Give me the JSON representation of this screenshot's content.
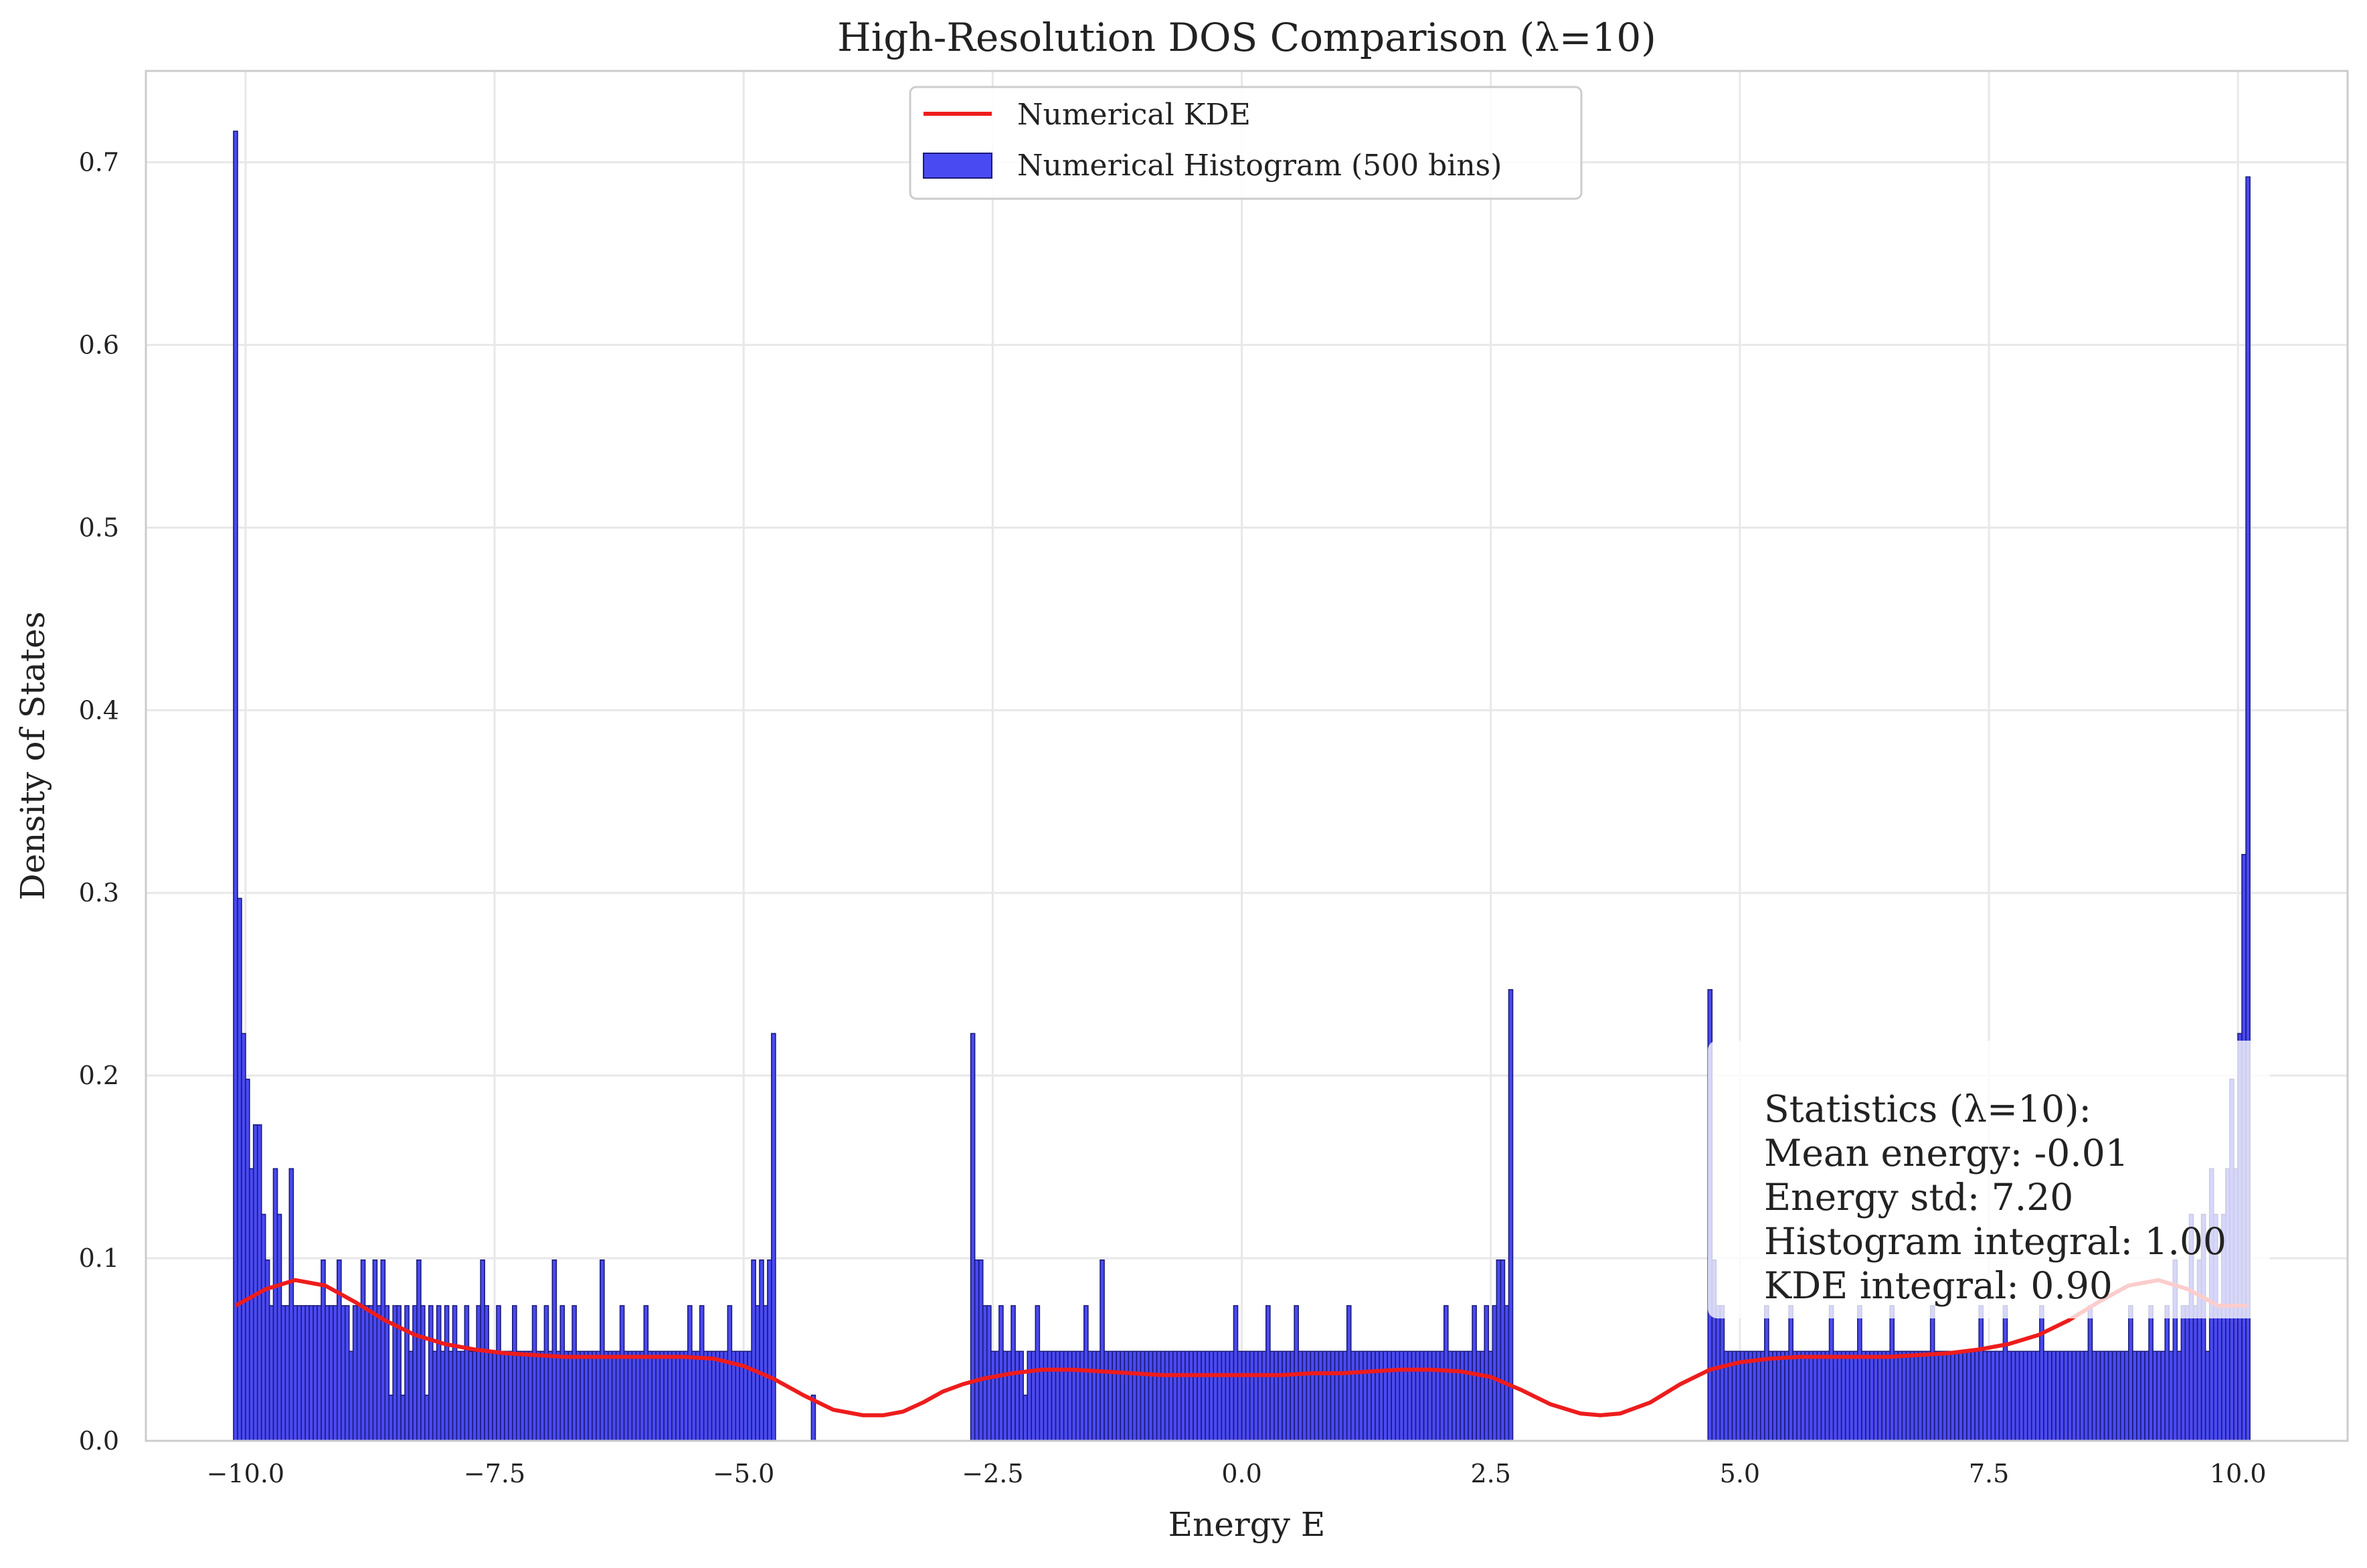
{
  "chart_data": {
    "type": "bar",
    "title": "High-Resolution DOS Comparison (λ=10)",
    "xlabel": "Energy E",
    "ylabel": "Density of States",
    "xlim": [
      -11.0,
      11.1
    ],
    "ylim": [
      0.0,
      0.75
    ],
    "x_ticks": [
      -10.0,
      -7.5,
      -5.0,
      -2.5,
      0.0,
      2.5,
      5.0,
      7.5,
      10.0
    ],
    "x_tick_labels": [
      "−10.0",
      "−7.5",
      "−5.0",
      "−2.5",
      "0.0",
      "2.5",
      "5.0",
      "7.5",
      "10.0"
    ],
    "y_ticks": [
      0.0,
      0.1,
      0.2,
      0.3,
      0.4,
      0.5,
      0.6,
      0.7
    ],
    "y_tick_labels": [
      "0.0",
      "0.1",
      "0.2",
      "0.3",
      "0.4",
      "0.5",
      "0.6",
      "0.7"
    ],
    "grid": true,
    "legend_position": "top-center",
    "legend": [
      {
        "label": "Numerical KDE",
        "kind": "line",
        "color": "#ee1c1c"
      },
      {
        "label": "Numerical Histogram (500 bins)",
        "kind": "patch",
        "color": "#4a4af2"
      }
    ],
    "histogram": {
      "name": "Numerical Histogram (500 bins)",
      "bins": 500,
      "range": [
        -10.1,
        10.1
      ],
      "bin_width": 0.0404,
      "fill_color": "#4a4af2",
      "edge_color": "#1a1a7a",
      "segments": [
        {
          "x_start": -10.1,
          "x_end": -4.7,
          "values": [
            0.717,
            0.297,
            0.223,
            0.198,
            0.149,
            0.173,
            0.173,
            0.124,
            0.099,
            0.074,
            0.149,
            0.124,
            0.074,
            0.074,
            0.149,
            0.074,
            0.074,
            0.074,
            0.074,
            0.074,
            0.074,
            0.074,
            0.099,
            0.074,
            0.074,
            0.074,
            0.099,
            0.074,
            0.074,
            0.049,
            0.074,
            0.074,
            0.099,
            0.074,
            0.074,
            0.099,
            0.074,
            0.099,
            0.074,
            0.025,
            0.074,
            0.074,
            0.025,
            0.074,
            0.049,
            0.074,
            0.099,
            0.074,
            0.025,
            0.074,
            0.049,
            0.074,
            0.049,
            0.074,
            0.049,
            0.074,
            0.049,
            0.049,
            0.074,
            0.049,
            0.049,
            0.074,
            0.099,
            0.074,
            0.049,
            0.049,
            0.074,
            0.049,
            0.049,
            0.049,
            0.074,
            0.049,
            0.049,
            0.049,
            0.049,
            0.074,
            0.049,
            0.049,
            0.074,
            0.049,
            0.099,
            0.049,
            0.074,
            0.049,
            0.049,
            0.074,
            0.049,
            0.049,
            0.049,
            0.049,
            0.049,
            0.049,
            0.099,
            0.049,
            0.049,
            0.049,
            0.049,
            0.074,
            0.049,
            0.049,
            0.049,
            0.049,
            0.049,
            0.074,
            0.049,
            0.049,
            0.049,
            0.049,
            0.049,
            0.049,
            0.049,
            0.049,
            0.049,
            0.049,
            0.074,
            0.049,
            0.049,
            0.074,
            0.049,
            0.049,
            0.049,
            0.049,
            0.049,
            0.049,
            0.074,
            0.049,
            0.049,
            0.049,
            0.049,
            0.049,
            0.099,
            0.074,
            0.099,
            0.074,
            0.099,
            0.223
          ]
        },
        {
          "x_start": -4.3,
          "x_end": -4.3,
          "values": [
            0.025
          ]
        },
        {
          "x_start": -2.7,
          "x_end": 2.7,
          "values": [
            0.223,
            0.099,
            0.099,
            0.074,
            0.074,
            0.049,
            0.049,
            0.074,
            0.049,
            0.049,
            0.074,
            0.049,
            0.049,
            0.025,
            0.049,
            0.049,
            0.074,
            0.049,
            0.049,
            0.049,
            0.049,
            0.049,
            0.049,
            0.049,
            0.049,
            0.049,
            0.049,
            0.049,
            0.074,
            0.049,
            0.049,
            0.049,
            0.099,
            0.049,
            0.049,
            0.049,
            0.049,
            0.049,
            0.049,
            0.049,
            0.049,
            0.049,
            0.049,
            0.049,
            0.049,
            0.049,
            0.049,
            0.049,
            0.049,
            0.049,
            0.049,
            0.049,
            0.049,
            0.049,
            0.049,
            0.049,
            0.049,
            0.049,
            0.049,
            0.049,
            0.049,
            0.049,
            0.049,
            0.049,
            0.049,
            0.074,
            0.049,
            0.049,
            0.049,
            0.049,
            0.049,
            0.049,
            0.049,
            0.074,
            0.049,
            0.049,
            0.049,
            0.049,
            0.049,
            0.049,
            0.074,
            0.049,
            0.049,
            0.049,
            0.049,
            0.049,
            0.049,
            0.049,
            0.049,
            0.049,
            0.049,
            0.049,
            0.049,
            0.074,
            0.049,
            0.049,
            0.049,
            0.049,
            0.049,
            0.049,
            0.049,
            0.049,
            0.049,
            0.049,
            0.049,
            0.049,
            0.049,
            0.049,
            0.049,
            0.049,
            0.049,
            0.049,
            0.049,
            0.049,
            0.049,
            0.049,
            0.049,
            0.074,
            0.049,
            0.049,
            0.049,
            0.049,
            0.049,
            0.049,
            0.074,
            0.049,
            0.049,
            0.074,
            0.049,
            0.074,
            0.099,
            0.099,
            0.074,
            0.247
          ]
        },
        {
          "x_start": 4.7,
          "x_end": 10.1,
          "values": [
            0.247,
            0.099,
            0.074,
            0.074,
            0.049,
            0.049,
            0.049,
            0.049,
            0.049,
            0.049,
            0.049,
            0.049,
            0.049,
            0.049,
            0.074,
            0.049,
            0.049,
            0.049,
            0.049,
            0.049,
            0.074,
            0.049,
            0.049,
            0.049,
            0.049,
            0.049,
            0.049,
            0.049,
            0.049,
            0.049,
            0.074,
            0.049,
            0.049,
            0.049,
            0.049,
            0.049,
            0.049,
            0.074,
            0.049,
            0.049,
            0.049,
            0.049,
            0.049,
            0.049,
            0.049,
            0.074,
            0.049,
            0.049,
            0.049,
            0.049,
            0.049,
            0.049,
            0.049,
            0.049,
            0.049,
            0.074,
            0.049,
            0.049,
            0.049,
            0.049,
            0.049,
            0.049,
            0.049,
            0.049,
            0.049,
            0.049,
            0.049,
            0.074,
            0.049,
            0.049,
            0.049,
            0.049,
            0.049,
            0.074,
            0.049,
            0.049,
            0.049,
            0.049,
            0.049,
            0.049,
            0.049,
            0.049,
            0.074,
            0.049,
            0.049,
            0.049,
            0.049,
            0.049,
            0.049,
            0.049,
            0.049,
            0.049,
            0.049,
            0.049,
            0.074,
            0.049,
            0.049,
            0.049,
            0.049,
            0.049,
            0.049,
            0.049,
            0.049,
            0.049,
            0.074,
            0.049,
            0.049,
            0.049,
            0.049,
            0.074,
            0.049,
            0.049,
            0.049,
            0.074,
            0.049,
            0.099,
            0.049,
            0.074,
            0.074,
            0.124,
            0.074,
            0.099,
            0.124,
            0.049,
            0.149,
            0.124,
            0.074,
            0.124,
            0.149,
            0.198,
            0.149,
            0.223,
            0.321,
            0.692
          ]
        }
      ]
    },
    "kde": {
      "name": "Numerical KDE",
      "color": "#ee1c1c",
      "x": [
        -10.1,
        -9.8,
        -9.5,
        -9.2,
        -8.9,
        -8.6,
        -8.3,
        -8.0,
        -7.7,
        -7.4,
        -7.1,
        -6.8,
        -6.5,
        -6.2,
        -5.9,
        -5.6,
        -5.3,
        -5.0,
        -4.7,
        -4.4,
        -4.1,
        -3.8,
        -3.6,
        -3.4,
        -3.2,
        -3.0,
        -2.8,
        -2.6,
        -2.3,
        -2.0,
        -1.7,
        -1.4,
        -1.1,
        -0.8,
        -0.5,
        -0.2,
        0.1,
        0.4,
        0.7,
        1.0,
        1.3,
        1.6,
        1.9,
        2.2,
        2.5,
        2.8,
        3.1,
        3.4,
        3.6,
        3.8,
        4.1,
        4.4,
        4.7,
        5.0,
        5.3,
        5.6,
        5.9,
        6.2,
        6.5,
        6.8,
        7.1,
        7.4,
        7.7,
        8.0,
        8.3,
        8.6,
        8.9,
        9.2,
        9.5,
        9.8,
        10.1
      ],
      "y": [
        0.074,
        0.083,
        0.088,
        0.085,
        0.076,
        0.066,
        0.058,
        0.053,
        0.05,
        0.048,
        0.047,
        0.046,
        0.046,
        0.046,
        0.046,
        0.046,
        0.045,
        0.041,
        0.034,
        0.025,
        0.017,
        0.014,
        0.014,
        0.016,
        0.021,
        0.027,
        0.031,
        0.034,
        0.037,
        0.039,
        0.039,
        0.038,
        0.037,
        0.036,
        0.036,
        0.036,
        0.036,
        0.036,
        0.037,
        0.037,
        0.038,
        0.039,
        0.039,
        0.038,
        0.035,
        0.028,
        0.02,
        0.015,
        0.014,
        0.015,
        0.021,
        0.031,
        0.039,
        0.043,
        0.045,
        0.046,
        0.046,
        0.046,
        0.046,
        0.047,
        0.048,
        0.05,
        0.053,
        0.058,
        0.066,
        0.076,
        0.085,
        0.088,
        0.083,
        0.074,
        0.074
      ]
    },
    "stats_box": {
      "lines": [
        "Statistics (λ=10):",
        "Mean energy: -0.01",
        "Energy std: 7.20",
        "Histogram integral: 1.00",
        "KDE integral: 0.90"
      ],
      "position": "right",
      "background": "#ffffff",
      "opacity": 0.78
    }
  }
}
